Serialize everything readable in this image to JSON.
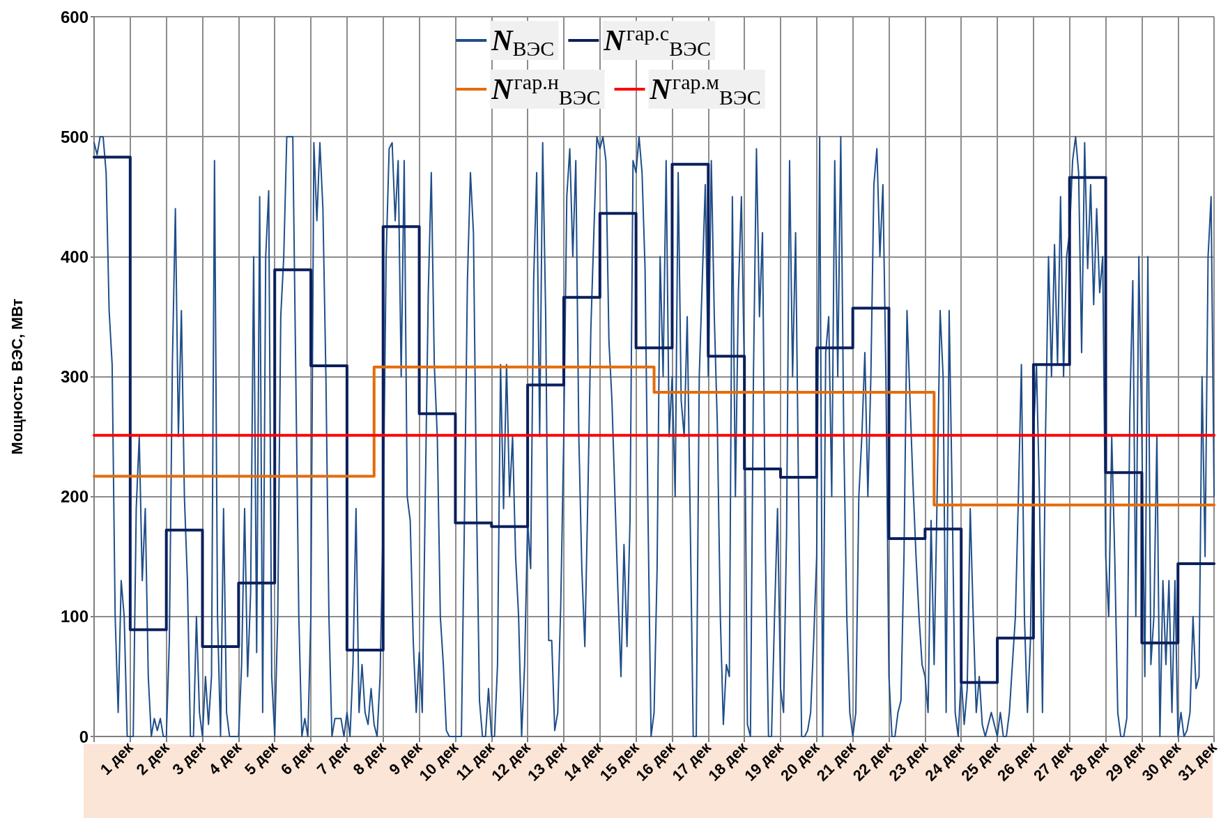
{
  "chart_data": {
    "type": "line",
    "ylabel": "Мощность ВЭС, МВт",
    "categories": [
      null,
      null,
      null,
      null,
      null,
      null,
      null,
      null,
      null,
      null,
      null,
      null,
      "1 дек",
      null,
      null,
      null,
      null,
      null,
      null,
      null,
      null,
      null,
      null,
      null,
      "2 дек",
      null,
      null,
      null,
      null,
      null,
      null,
      null,
      null,
      null,
      null,
      null,
      "3 дек",
      null,
      null,
      null,
      null,
      null,
      null,
      null,
      null,
      null,
      null,
      null,
      "4 дек",
      null,
      null,
      null,
      null,
      null,
      null,
      null,
      null,
      null,
      null,
      null,
      "5 дек",
      null,
      null,
      null,
      null,
      null,
      null,
      null,
      null,
      null,
      null,
      null,
      "6 дек",
      null,
      null,
      null,
      null,
      null,
      null,
      null,
      null,
      null,
      null,
      null,
      "7 дек",
      null,
      null,
      null,
      null,
      null,
      null,
      null,
      null,
      null,
      null,
      null,
      "8 дек",
      null,
      null,
      null,
      null,
      null,
      null,
      null,
      null,
      null,
      null,
      null,
      "9 дек",
      null,
      null,
      null,
      null,
      null,
      null,
      null,
      null,
      null,
      null,
      null,
      "10 дек",
      null,
      null,
      null,
      null,
      null,
      null,
      null,
      null,
      null,
      null,
      null,
      "11 дек",
      null,
      null,
      null,
      null,
      null,
      null,
      null,
      null,
      null,
      null,
      null,
      "12 дек",
      null,
      null,
      null,
      null,
      null,
      null,
      null,
      null,
      null,
      null,
      null,
      "13 дек",
      null,
      null,
      null,
      null,
      null,
      null,
      null,
      null,
      null,
      null,
      null,
      "14 дек",
      null,
      null,
      null,
      null,
      null,
      null,
      null,
      null,
      null,
      null,
      null,
      "15 дек",
      null,
      null,
      null,
      null,
      null,
      null,
      null,
      null,
      null,
      null,
      null,
      "16 дек",
      null,
      null,
      null,
      null,
      null,
      null,
      null,
      null,
      null,
      null,
      null,
      "17 дек",
      null,
      null,
      null,
      null,
      null,
      null,
      null,
      null,
      null,
      null,
      null,
      "18 дек",
      null,
      null,
      null,
      null,
      null,
      null,
      null,
      null,
      null,
      null,
      null,
      "19 дек",
      null,
      null,
      null,
      null,
      null,
      null,
      null,
      null,
      null,
      null,
      null,
      "20 дек",
      null,
      null,
      null,
      null,
      null,
      null,
      null,
      null,
      null,
      null,
      null,
      "21 дек",
      null,
      null,
      null,
      null,
      null,
      null,
      null,
      null,
      null,
      null,
      null,
      "22 дек",
      null,
      null,
      null,
      null,
      null,
      null,
      null,
      null,
      null,
      null,
      null,
      "23 дек",
      null,
      null,
      null,
      null,
      null,
      null,
      null,
      null,
      null,
      null,
      null,
      "24 дек",
      null,
      null,
      null,
      null,
      null,
      null,
      null,
      null,
      null,
      null,
      null,
      "25 дек",
      null,
      null,
      null,
      null,
      null,
      null,
      null,
      null,
      null,
      null,
      null,
      "26 дек",
      null,
      null,
      null,
      null,
      null,
      null,
      null,
      null,
      null,
      null,
      null,
      "27 дек",
      null,
      null,
      null,
      null,
      null,
      null,
      null,
      null,
      null,
      null,
      null,
      "28 дек",
      null,
      null,
      null,
      null,
      null,
      null,
      null,
      null,
      null,
      null,
      null,
      "29 дек",
      null,
      null,
      null,
      null,
      null,
      null,
      null,
      null,
      null,
      null,
      null,
      "30 дек",
      null,
      null,
      null,
      null,
      null,
      null,
      null,
      null,
      null,
      null,
      null,
      "31 дек"
    ],
    "ylim": [
      0,
      600
    ],
    "yticks": [
      0,
      100,
      200,
      300,
      400,
      500,
      600
    ],
    "grid": true,
    "legend": "top",
    "marker": "none",
    "line_style": "solid",
    "series": [
      {
        "name": "N$_{ВЭС}$",
        "color": "#1f4e89",
        "values": [
          495,
          485,
          500,
          500,
          470,
          355,
          310,
          100,
          20,
          130,
          100,
          0,
          0,
          0,
          190,
          250,
          130,
          190,
          50,
          0,
          15,
          5,
          15,
          0,
          0,
          80,
          310,
          440,
          250,
          355,
          200,
          130,
          0,
          0,
          100,
          20,
          0,
          50,
          10,
          50,
          480,
          100,
          0,
          190,
          20,
          0,
          0,
          0,
          0,
          60,
          190,
          50,
          120,
          400,
          70,
          450,
          20,
          400,
          455,
          50,
          0,
          100,
          350,
          400,
          500,
          500,
          500,
          300,
          100,
          0,
          15,
          0,
          100,
          495,
          430,
          495,
          440,
          300,
          100,
          0,
          15,
          15,
          15,
          0,
          20,
          0,
          60,
          190,
          20,
          60,
          20,
          10,
          40,
          10,
          0,
          50,
          180,
          400,
          490,
          495,
          430,
          480,
          300,
          480,
          200,
          180,
          80,
          20,
          70,
          20,
          200,
          370,
          470,
          310,
          250,
          100,
          60,
          5,
          0,
          0,
          0,
          0,
          0,
          180,
          380,
          470,
          420,
          200,
          30,
          0,
          0,
          40,
          0,
          0,
          60,
          310,
          190,
          310,
          200,
          250,
          150,
          100,
          0,
          60,
          180,
          140,
          380,
          470,
          250,
          495,
          350,
          80,
          80,
          5,
          20,
          110,
          250,
          450,
          490,
          400,
          480,
          250,
          140,
          75,
          200,
          340,
          420,
          500,
          490,
          500,
          480,
          330,
          280,
          200,
          120,
          50,
          160,
          75,
          180,
          480,
          470,
          500,
          470,
          390,
          180,
          0,
          20,
          140,
          400,
          300,
          480,
          250,
          300,
          200,
          470,
          280,
          250,
          350,
          180,
          0,
          0,
          300,
          380,
          460,
          300,
          480,
          350,
          260,
          100,
          10,
          60,
          50,
          450,
          200,
          370,
          450,
          300,
          10,
          0,
          300,
          490,
          350,
          420,
          150,
          0,
          0,
          100,
          190,
          40,
          20,
          170,
          480,
          300,
          420,
          200,
          0,
          0,
          5,
          20,
          80,
          150,
          500,
          0,
          320,
          350,
          200,
          480,
          300,
          500,
          250,
          100,
          20,
          0,
          20,
          200,
          250,
          320,
          200,
          300,
          460,
          490,
          400,
          460,
          300,
          50,
          0,
          0,
          20,
          30,
          150,
          355,
          280,
          210,
          150,
          100,
          60,
          50,
          20,
          180,
          60,
          200,
          355,
          300,
          20,
          355,
          200,
          20,
          0,
          50,
          10,
          40,
          190,
          100,
          20,
          50,
          10,
          0,
          10,
          20,
          10,
          0,
          20,
          0,
          0,
          20,
          60,
          100,
          200,
          310,
          100,
          20,
          80,
          250,
          310,
          200,
          20,
          250,
          400,
          300,
          410,
          310,
          450,
          300,
          400,
          420,
          480,
          500,
          470,
          320,
          495,
          390,
          460,
          360,
          440,
          370,
          400,
          150,
          100,
          250,
          150,
          20,
          0,
          0,
          15,
          270,
          380,
          100,
          400,
          250,
          50,
          400,
          60,
          100,
          250,
          0,
          130,
          60,
          130,
          20,
          130,
          0,
          20,
          0,
          5,
          20,
          100,
          40,
          50,
          300,
          150,
          400,
          450,
          200
        ]
      },
      {
        "name": "N$^{гар.с}$$_{ВЭС}$",
        "color": "#0b1f5c",
        "type": "step",
        "values": [
          483,
          483,
          483,
          483,
          483,
          483,
          483,
          483,
          483,
          483,
          483,
          483,
          89,
          89,
          89,
          89,
          89,
          89,
          89,
          89,
          89,
          89,
          89,
          89,
          172,
          172,
          172,
          172,
          172,
          172,
          172,
          172,
          172,
          172,
          172,
          172,
          75,
          75,
          75,
          75,
          75,
          75,
          75,
          75,
          75,
          75,
          75,
          75,
          128,
          128,
          128,
          128,
          128,
          128,
          128,
          128,
          128,
          128,
          128,
          128,
          389,
          389,
          389,
          389,
          389,
          389,
          389,
          389,
          389,
          389,
          389,
          389,
          309,
          309,
          309,
          309,
          309,
          309,
          309,
          309,
          309,
          309,
          309,
          309,
          72,
          72,
          72,
          72,
          72,
          72,
          72,
          72,
          72,
          72,
          72,
          72,
          425,
          425,
          425,
          425,
          425,
          425,
          425,
          425,
          425,
          425,
          425,
          425,
          269,
          269,
          269,
          269,
          269,
          269,
          269,
          269,
          269,
          269,
          269,
          269,
          178,
          178,
          178,
          178,
          178,
          178,
          178,
          178,
          178,
          178,
          178,
          178,
          175,
          175,
          175,
          175,
          175,
          175,
          175,
          175,
          175,
          175,
          175,
          175,
          293,
          293,
          293,
          293,
          293,
          293,
          293,
          293,
          293,
          293,
          293,
          293,
          366,
          366,
          366,
          366,
          366,
          366,
          366,
          366,
          366,
          366,
          366,
          366,
          436,
          436,
          436,
          436,
          436,
          436,
          436,
          436,
          436,
          436,
          436,
          436,
          324,
          324,
          324,
          324,
          324,
          324,
          324,
          324,
          324,
          324,
          324,
          324,
          477,
          477,
          477,
          477,
          477,
          477,
          477,
          477,
          477,
          477,
          477,
          477,
          317,
          317,
          317,
          317,
          317,
          317,
          317,
          317,
          317,
          317,
          317,
          317,
          223,
          223,
          223,
          223,
          223,
          223,
          223,
          223,
          223,
          223,
          223,
          223,
          216,
          216,
          216,
          216,
          216,
          216,
          216,
          216,
          216,
          216,
          216,
          216,
          324,
          324,
          324,
          324,
          324,
          324,
          324,
          324,
          324,
          324,
          324,
          324,
          357,
          357,
          357,
          357,
          357,
          357,
          357,
          357,
          357,
          357,
          357,
          357,
          165,
          165,
          165,
          165,
          165,
          165,
          165,
          165,
          165,
          165,
          165,
          165,
          173,
          173,
          173,
          173,
          173,
          173,
          173,
          173,
          173,
          173,
          173,
          173,
          45,
          45,
          45,
          45,
          45,
          45,
          45,
          45,
          45,
          45,
          45,
          45,
          82,
          82,
          82,
          82,
          82,
          82,
          82,
          82,
          82,
          82,
          82,
          82,
          310,
          310,
          310,
          310,
          310,
          310,
          310,
          310,
          310,
          310,
          310,
          310,
          466,
          466,
          466,
          466,
          466,
          466,
          466,
          466,
          466,
          466,
          466,
          466,
          220,
          220,
          220,
          220,
          220,
          220,
          220,
          220,
          220,
          220,
          220,
          220,
          78,
          78,
          78,
          78,
          78,
          78,
          78,
          78,
          78,
          78,
          78,
          78,
          144,
          144,
          144,
          144,
          144,
          144,
          144,
          144,
          144,
          144,
          144,
          144,
          144
        ]
      },
      {
        "name": "N$^{гар.н}$$_{ВЭС}$",
        "color": "#e46c0a",
        "type": "step",
        "values": [
          217,
          217,
          217,
          217,
          217,
          217,
          217,
          217,
          217,
          217,
          217,
          217,
          217,
          217,
          217,
          217,
          217,
          217,
          217,
          217,
          217,
          217,
          217,
          217,
          217,
          217,
          217,
          217,
          217,
          217,
          217,
          217,
          217,
          217,
          217,
          217,
          217,
          217,
          217,
          217,
          217,
          217,
          217,
          217,
          217,
          217,
          217,
          217,
          217,
          217,
          217,
          217,
          217,
          217,
          217,
          217,
          217,
          217,
          217,
          217,
          217,
          217,
          217,
          217,
          217,
          217,
          217,
          217,
          217,
          217,
          217,
          217,
          217,
          217,
          217,
          217,
          217,
          217,
          217,
          217,
          217,
          217,
          217,
          217,
          217,
          217,
          217,
          217,
          217,
          217,
          217,
          217,
          217,
          308,
          308,
          308,
          308,
          308,
          308,
          308,
          308,
          308,
          308,
          308,
          308,
          308,
          308,
          308,
          308,
          308,
          308,
          308,
          308,
          308,
          308,
          308,
          308,
          308,
          308,
          308,
          308,
          308,
          308,
          308,
          308,
          308,
          308,
          308,
          308,
          308,
          308,
          308,
          308,
          308,
          308,
          308,
          308,
          308,
          308,
          308,
          308,
          308,
          308,
          308,
          308,
          308,
          308,
          308,
          308,
          308,
          308,
          308,
          308,
          308,
          308,
          308,
          308,
          308,
          308,
          308,
          308,
          308,
          308,
          308,
          308,
          308,
          308,
          308,
          308,
          308,
          308,
          308,
          308,
          308,
          308,
          308,
          308,
          308,
          308,
          308,
          308,
          308,
          308,
          308,
          308,
          308,
          287,
          287,
          287,
          287,
          287,
          287,
          287,
          287,
          287,
          287,
          287,
          287,
          287,
          287,
          287,
          287,
          287,
          287,
          287,
          287,
          287,
          287,
          287,
          287,
          287,
          287,
          287,
          287,
          287,
          287,
          287,
          287,
          287,
          287,
          287,
          287,
          287,
          287,
          287,
          287,
          287,
          287,
          287,
          287,
          287,
          287,
          287,
          287,
          287,
          287,
          287,
          287,
          287,
          287,
          287,
          287,
          287,
          287,
          287,
          287,
          287,
          287,
          287,
          287,
          287,
          287,
          287,
          287,
          287,
          287,
          287,
          287,
          287,
          287,
          287,
          287,
          287,
          287,
          287,
          287,
          287,
          287,
          287,
          287,
          287,
          287,
          287,
          287,
          287,
          287,
          287,
          287,
          287,
          193,
          193,
          193,
          193,
          193,
          193,
          193,
          193,
          193,
          193,
          193,
          193,
          193,
          193,
          193,
          193,
          193,
          193,
          193,
          193,
          193,
          193,
          193,
          193,
          193,
          193,
          193,
          193,
          193,
          193,
          193,
          193,
          193,
          193,
          193,
          193,
          193,
          193,
          193,
          193,
          193,
          193,
          193,
          193,
          193,
          193,
          193,
          193,
          193,
          193,
          193,
          193,
          193,
          193,
          193,
          193,
          193,
          193,
          193,
          193,
          193,
          193,
          193,
          193,
          193,
          193,
          193,
          193,
          193,
          193,
          193,
          193,
          193,
          193,
          193,
          193,
          193,
          193,
          193,
          193,
          193,
          193,
          193,
          193,
          193,
          193,
          193,
          193,
          193,
          193,
          193,
          193,
          193,
          193
        ]
      },
      {
        "name": "N$^{гар.м}$$_{ВЭС}$",
        "color": "#ff0000",
        "values": [
          251,
          251,
          251,
          251,
          251,
          251,
          251,
          251,
          251,
          251,
          251,
          251,
          251,
          251,
          251,
          251,
          251,
          251,
          251,
          251,
          251,
          251,
          251,
          251,
          251,
          251,
          251,
          251,
          251,
          251,
          251,
          251,
          251,
          251,
          251,
          251,
          251,
          251,
          251,
          251,
          251,
          251,
          251,
          251,
          251,
          251,
          251,
          251,
          251,
          251,
          251,
          251,
          251,
          251,
          251,
          251,
          251,
          251,
          251,
          251,
          251,
          251,
          251,
          251,
          251,
          251,
          251,
          251,
          251,
          251,
          251,
          251,
          251,
          251,
          251,
          251,
          251,
          251,
          251,
          251,
          251,
          251,
          251,
          251,
          251,
          251,
          251,
          251,
          251,
          251,
          251,
          251,
          251,
          251,
          251,
          251,
          251,
          251,
          251,
          251,
          251,
          251,
          251,
          251,
          251,
          251,
          251,
          251,
          251,
          251,
          251,
          251,
          251,
          251,
          251,
          251,
          251,
          251,
          251,
          251,
          251,
          251,
          251,
          251,
          251,
          251,
          251,
          251,
          251,
          251,
          251,
          251,
          251,
          251,
          251,
          251,
          251,
          251,
          251,
          251,
          251,
          251,
          251,
          251,
          251,
          251,
          251,
          251,
          251,
          251,
          251,
          251,
          251,
          251,
          251,
          251,
          251,
          251,
          251,
          251,
          251,
          251,
          251,
          251,
          251,
          251,
          251,
          251,
          251,
          251,
          251,
          251,
          251,
          251,
          251,
          251,
          251,
          251,
          251,
          251,
          251,
          251,
          251,
          251,
          251,
          251,
          251,
          251,
          251,
          251,
          251,
          251,
          251,
          251,
          251,
          251,
          251,
          251,
          251,
          251,
          251,
          251,
          251,
          251,
          251,
          251,
          251,
          251,
          251,
          251,
          251,
          251,
          251,
          251,
          251,
          251,
          251,
          251,
          251,
          251,
          251,
          251,
          251,
          251,
          251,
          251,
          251,
          251,
          251,
          251,
          251,
          251,
          251,
          251,
          251,
          251,
          251,
          251,
          251,
          251,
          251,
          251,
          251,
          251,
          251,
          251,
          251,
          251,
          251,
          251,
          251,
          251,
          251,
          251,
          251,
          251,
          251,
          251,
          251,
          251,
          251,
          251,
          251,
          251,
          251,
          251,
          251,
          251,
          251,
          251,
          251,
          251,
          251,
          251,
          251,
          251,
          251,
          251,
          251,
          251,
          251,
          251,
          251,
          251,
          251,
          251,
          251,
          251,
          251,
          251,
          251,
          251,
          251,
          251,
          251,
          251,
          251,
          251,
          251,
          251,
          251,
          251,
          251,
          251,
          251,
          251,
          251,
          251,
          251,
          251,
          251,
          251,
          251,
          251,
          251,
          251,
          251,
          251,
          251,
          251,
          251,
          251,
          251,
          251,
          251,
          251,
          251,
          251,
          251,
          251,
          251,
          251,
          251,
          251,
          251,
          251,
          251,
          251,
          251,
          251,
          251,
          251,
          251,
          251,
          251,
          251,
          251,
          251,
          251,
          251,
          251,
          251,
          251,
          251,
          251,
          251,
          251,
          251,
          251,
          251,
          251,
          251,
          251,
          251,
          251,
          251,
          251,
          251,
          251,
          251,
          251,
          251,
          251
        ]
      }
    ]
  }
}
